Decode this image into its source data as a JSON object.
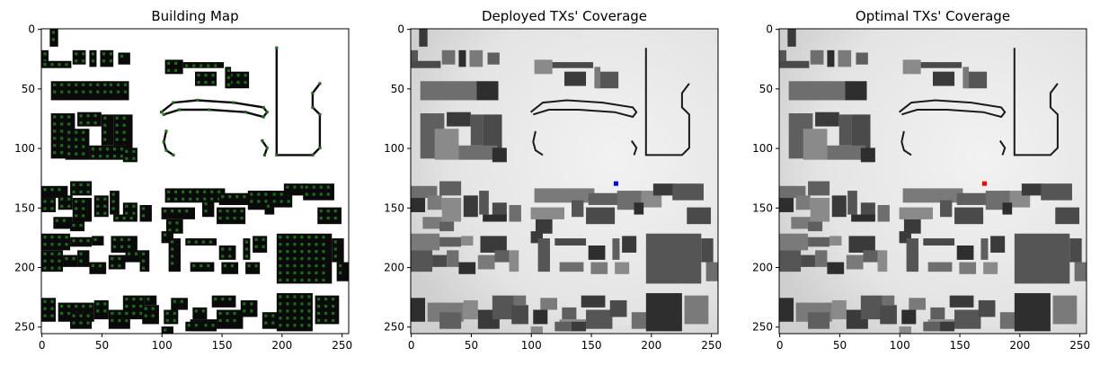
{
  "panels": [
    {
      "id": "building",
      "title": "Building Map",
      "xticks": [
        "0",
        "50",
        "100",
        "150",
        "200",
        "250"
      ],
      "yticks": [
        "0",
        "50",
        "100",
        "150",
        "200",
        "250"
      ],
      "background": "#ffffff",
      "building_color": "#0a0a0a",
      "grid_dot_color": "#1a6b1a"
    },
    {
      "id": "deployed",
      "title": "Deployed TXs' Coverage",
      "xticks": [
        "0",
        "50",
        "100",
        "150",
        "200",
        "250"
      ],
      "yticks": [
        "0",
        "50",
        "100",
        "150",
        "200",
        "250"
      ],
      "background": "#e6e6e6",
      "tx_marker": {
        "x": 171,
        "y": 130,
        "color": "#0000ff"
      }
    },
    {
      "id": "optimal",
      "title": "Optimal TXs' Coverage",
      "xticks": [
        "0",
        "50",
        "100",
        "150",
        "200",
        "250"
      ],
      "yticks": [
        "0",
        "50",
        "100",
        "150",
        "200",
        "250"
      ],
      "background": "#e6e6e6",
      "tx_marker": {
        "x": 171,
        "y": 130,
        "color": "#ff0000"
      }
    }
  ],
  "map": {
    "x_range": [
      0,
      256
    ],
    "y_range": [
      0,
      256
    ],
    "y_inverted": true
  }
}
